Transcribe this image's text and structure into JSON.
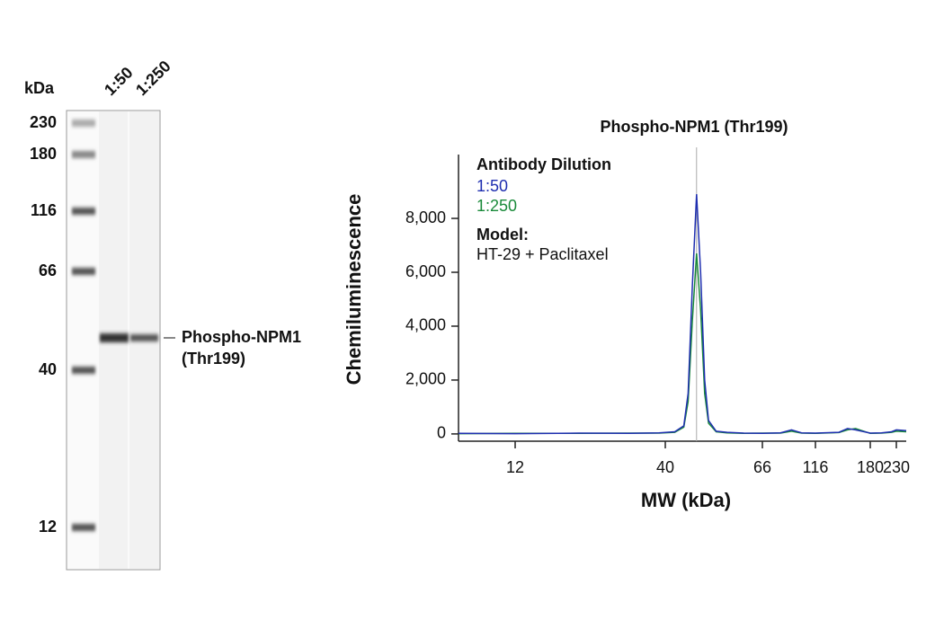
{
  "blot": {
    "unit": "kDa",
    "lanes": [
      "1:50",
      "1:250"
    ],
    "markers": [
      230,
      180,
      116,
      66,
      40,
      12
    ],
    "band_label": [
      "Phospho-NPM1",
      "(Thr199)"
    ]
  },
  "chart_data": {
    "type": "line",
    "title": "Phospho-NPM1 (Thr199)",
    "x_label": "MW (kDa)",
    "y_label": "Chemiluminescence",
    "x": [
      8,
      12,
      20,
      30,
      38,
      42,
      44,
      45,
      46,
      47,
      48,
      49,
      50,
      52,
      55,
      60,
      66,
      80,
      90,
      100,
      116,
      140,
      150,
      160,
      180,
      200,
      220,
      230,
      250
    ],
    "series": [
      {
        "name": "1:50",
        "color": "#1f2fb0",
        "values": [
          20,
          10,
          30,
          20,
          40,
          80,
          300,
          1500,
          5500,
          8900,
          6000,
          2000,
          500,
          100,
          60,
          30,
          20,
          40,
          150,
          40,
          30,
          60,
          200,
          150,
          30,
          40,
          80,
          150,
          120
        ]
      },
      {
        "name": "1:250",
        "color": "#1a8a3a",
        "values": [
          10,
          20,
          20,
          30,
          30,
          60,
          250,
          1200,
          4200,
          6700,
          4600,
          1500,
          400,
          80,
          40,
          20,
          30,
          30,
          100,
          30,
          20,
          50,
          150,
          200,
          20,
          30,
          60,
          100,
          80
        ]
      }
    ],
    "legend_title": "Antibody Dilution",
    "legend": "upper left",
    "annotation": [
      "Model:",
      "HT-29 + Paclitaxel"
    ],
    "reference_x": 47,
    "xscale": "log",
    "xlim": [
      8,
      250
    ],
    "xticks": [
      12,
      40,
      66,
      116,
      180,
      230
    ],
    "ylim": [
      -270,
      10370
    ],
    "yticks": [
      0,
      {
        "value": 2000,
        "label": "2,000"
      },
      {
        "value": 4000,
        "label": "4,000"
      },
      {
        "value": 6000,
        "label": "6,000"
      },
      {
        "value": 8000,
        "label": "8,000"
      }
    ],
    "grid": false
  }
}
